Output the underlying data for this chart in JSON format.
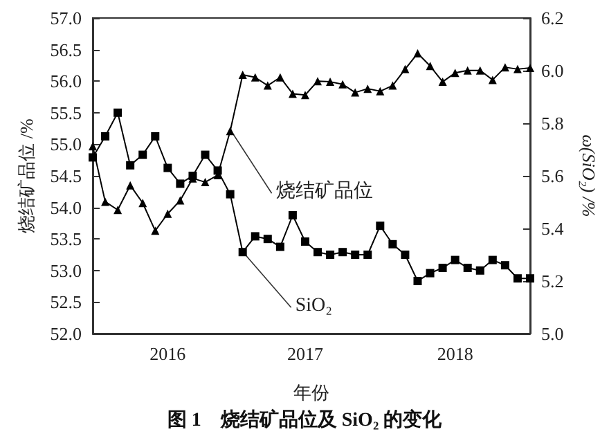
{
  "chart_data": {
    "type": "line",
    "title": "图 1　烧结矿品位及 SiO₂ 的变化",
    "xlabel": "年份",
    "ylabel": "烧结矿品位 /%",
    "y2label": "ω(SiO₂) /%",
    "categories": [
      null,
      null,
      null,
      null,
      null,
      null,
      "2016",
      null,
      null,
      null,
      null,
      null,
      null,
      null,
      null,
      null,
      null,
      "2017",
      null,
      null,
      null,
      null,
      null,
      null,
      null,
      null,
      null,
      null,
      null,
      "2018",
      null,
      null,
      null,
      null,
      null,
      null
    ],
    "series": [
      {
        "name": "烧结矿品位",
        "color": "#000000",
        "marker": "triangle",
        "values": [
          54.97,
          54.09,
          53.96,
          54.35,
          54.07,
          53.63,
          53.9,
          54.11,
          54.46,
          54.4,
          54.51,
          55.21,
          56.1,
          56.06,
          55.93,
          56.06,
          55.8,
          55.78,
          56.0,
          55.99,
          55.95,
          55.82,
          55.88,
          55.84,
          55.93,
          56.19,
          56.44,
          56.24,
          55.99,
          56.13,
          56.17,
          56.17,
          56.02,
          56.22,
          56.19,
          56.21
        ]
      },
      {
        "name": "SiO₂",
        "color": "#000000",
        "marker": "square",
        "axis": "y2",
        "values": [
          5.67,
          5.75,
          5.84,
          5.64,
          5.68,
          5.75,
          5.63,
          5.57,
          5.6,
          5.68,
          5.62,
          5.53,
          5.31,
          5.37,
          5.36,
          5.33,
          5.45,
          5.35,
          5.31,
          5.3,
          5.31,
          5.3,
          5.3,
          5.41,
          5.34,
          5.3,
          5.2,
          5.23,
          5.25,
          5.28,
          5.25,
          5.24,
          5.28,
          5.26,
          5.21,
          5.21
        ]
      }
    ],
    "ylim": [
      52,
      57
    ],
    "yticks": [
      {
        "value": 52,
        "label": "52.0"
      },
      {
        "value": 52.5,
        "label": "52.5"
      },
      {
        "value": 53,
        "label": "53.0"
      },
      {
        "value": 53.5,
        "label": "53.5"
      },
      {
        "value": 54,
        "label": "54.0"
      },
      {
        "value": 54.5,
        "label": "54.5"
      },
      {
        "value": 55,
        "label": "55.0"
      },
      {
        "value": 55.5,
        "label": "55.5"
      },
      {
        "value": 56,
        "label": "56.0"
      },
      {
        "value": 56.5,
        "label": "56.5"
      },
      {
        "value": 57,
        "label": "57.0"
      }
    ],
    "y2lim": [
      5,
      6.2
    ],
    "y2ticks": [
      {
        "value": 5,
        "label": "5.0"
      },
      {
        "value": 5.2,
        "label": "5.2"
      },
      {
        "value": 5.4,
        "label": "5.4"
      },
      {
        "value": 5.6,
        "label": "5.6"
      },
      {
        "value": 5.8,
        "label": "5.8"
      },
      {
        "value": 6,
        "label": "6.0"
      },
      {
        "value": 6.2,
        "label": "6.2"
      }
    ],
    "grid": false,
    "legend": false,
    "line_style": "solid"
  }
}
